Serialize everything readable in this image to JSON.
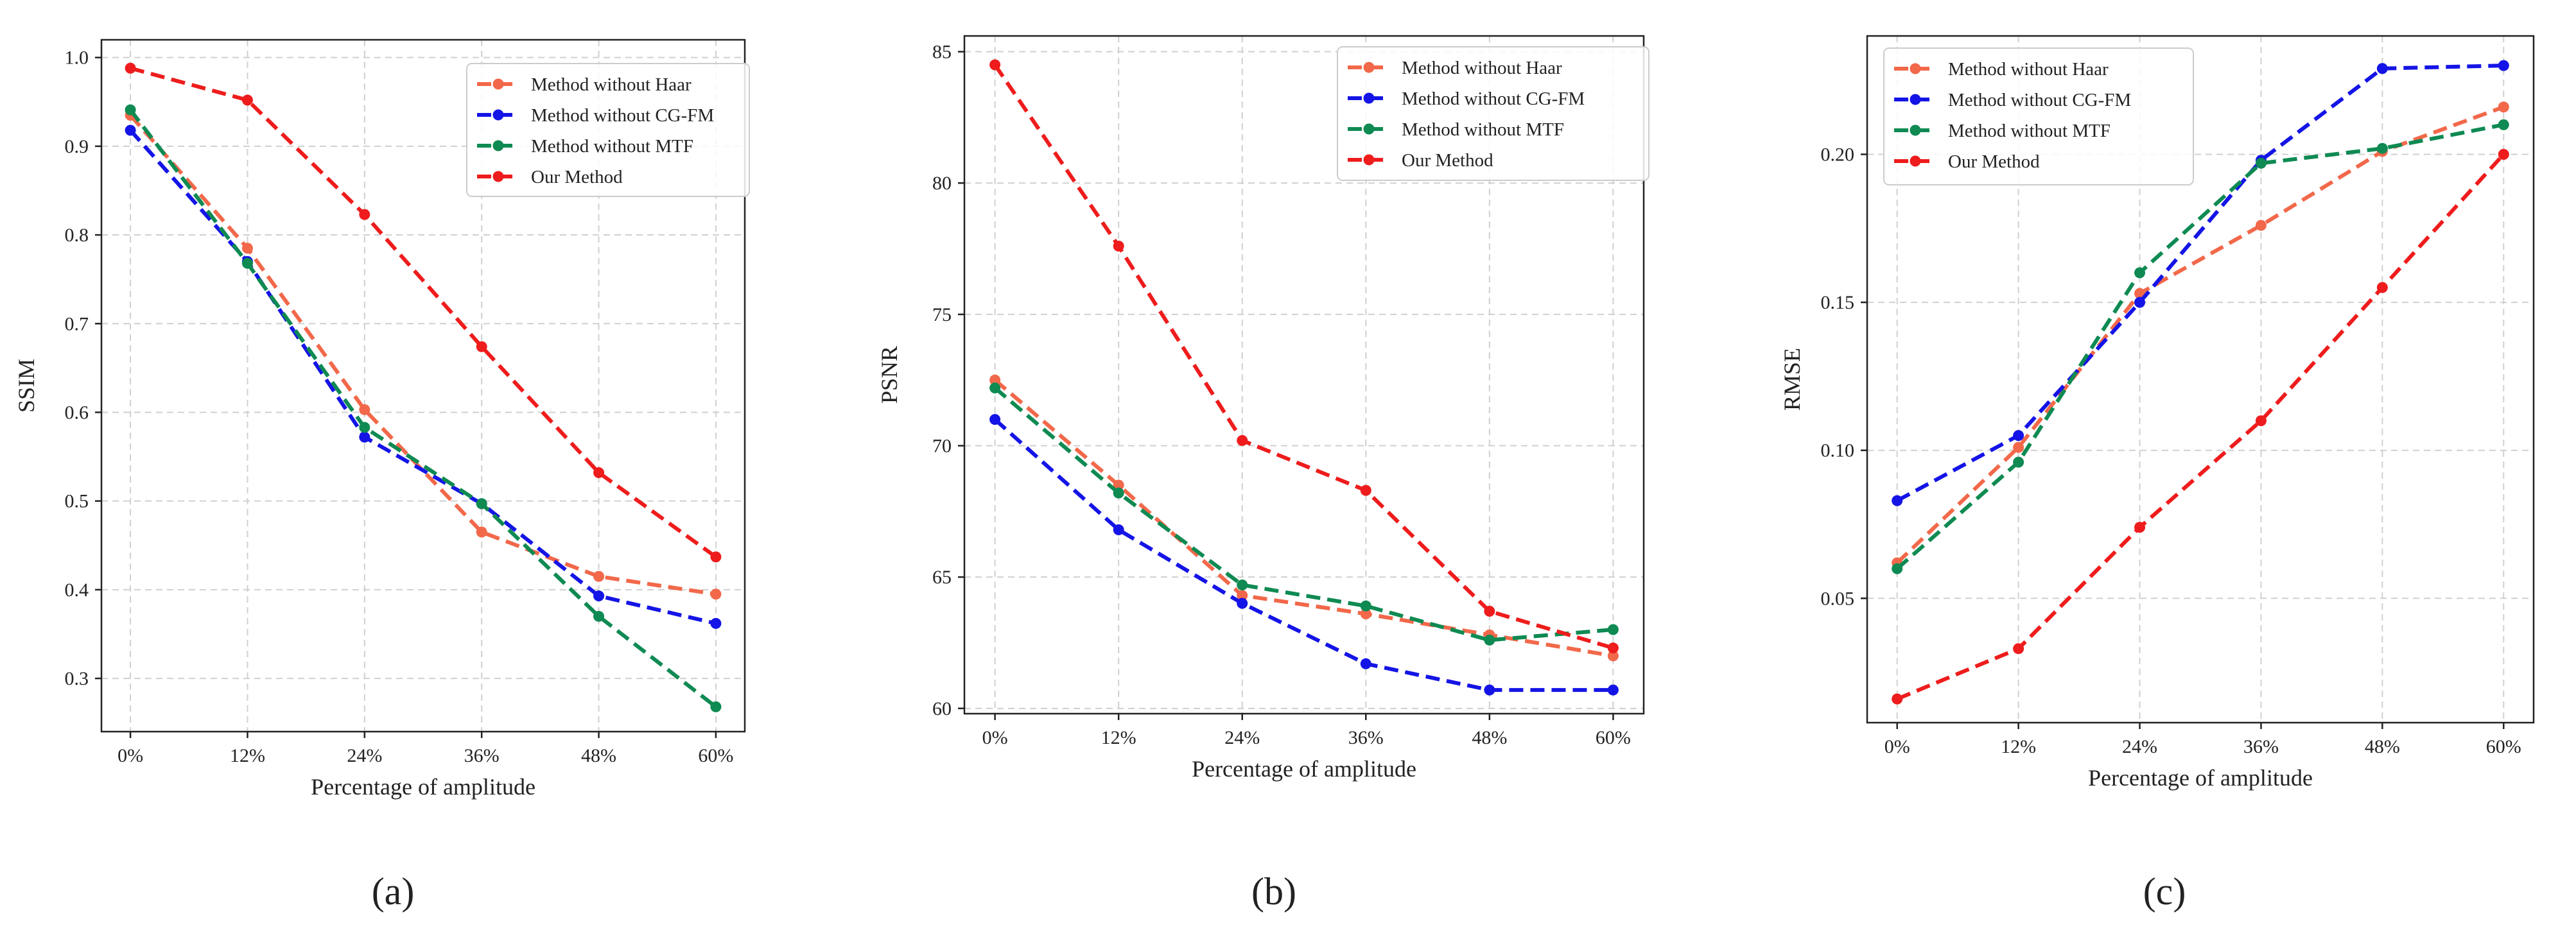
{
  "colors": {
    "haar": "#f2684a",
    "cgfm": "#1414e6",
    "mtf": "#0e8a52",
    "ours": "#ee1c1c",
    "grid": "#d0d0d0",
    "axis": "#222222"
  },
  "chart_data": [
    {
      "type": "line",
      "panel_label": "(a)",
      "panel_letter": "a",
      "xlabel": "Percentage of amplitude",
      "ylabel": "SSIM",
      "categories": [
        "0%",
        "12%",
        "24%",
        "36%",
        "48%",
        "60%"
      ],
      "ylim": [
        0.24,
        1.02
      ],
      "yticks": [
        0.3,
        0.4,
        0.5,
        0.6,
        0.7,
        0.8,
        0.9,
        1.0
      ],
      "ytick_labels": [
        "0.3",
        "0.4",
        "0.5",
        "0.6",
        "0.7",
        "0.8",
        "0.9",
        "1.0"
      ],
      "grid": true,
      "legend_position": "top-right",
      "series": [
        {
          "name": "Method without Haar",
          "color_key": "haar",
          "values": [
            0.935,
            0.785,
            0.603,
            0.465,
            0.415,
            0.395
          ]
        },
        {
          "name": "Method without CG-FM",
          "color_key": "cgfm",
          "values": [
            0.918,
            0.77,
            0.572,
            0.497,
            0.393,
            0.362
          ]
        },
        {
          "name": "Method without MTF",
          "color_key": "mtf",
          "values": [
            0.941,
            0.768,
            0.583,
            0.497,
            0.37,
            0.268
          ]
        },
        {
          "name": "Our Method",
          "color_key": "ours",
          "values": [
            0.988,
            0.952,
            0.823,
            0.674,
            0.532,
            0.437
          ]
        }
      ]
    },
    {
      "type": "line",
      "panel_label": "(b)",
      "panel_letter": "b",
      "xlabel": "Percentage of amplitude",
      "ylabel": "PSNR",
      "categories": [
        "0%",
        "12%",
        "24%",
        "36%",
        "48%",
        "60%"
      ],
      "ylim": [
        59.8,
        85.6
      ],
      "yticks": [
        60,
        65,
        70,
        75,
        80,
        85
      ],
      "ytick_labels": [
        "60",
        "65",
        "70",
        "75",
        "80",
        "85"
      ],
      "grid": true,
      "legend_position": "top-right",
      "series": [
        {
          "name": "Method without Haar",
          "color_key": "haar",
          "values": [
            72.5,
            68.5,
            64.3,
            63.6,
            62.8,
            62.0
          ]
        },
        {
          "name": "Method without CG-FM",
          "color_key": "cgfm",
          "values": [
            71.0,
            66.8,
            64.0,
            61.7,
            60.7,
            60.7
          ]
        },
        {
          "name": "Method without MTF",
          "color_key": "mtf",
          "values": [
            72.2,
            68.2,
            64.7,
            63.9,
            62.6,
            63.0
          ]
        },
        {
          "name": "Our Method",
          "color_key": "ours",
          "values": [
            84.5,
            77.6,
            70.2,
            68.3,
            63.7,
            62.3
          ]
        }
      ]
    },
    {
      "type": "line",
      "panel_label": "(c)",
      "panel_letter": "c",
      "xlabel": "Percentage of amplitude",
      "ylabel": "RMSE",
      "categories": [
        "0%",
        "12%",
        "24%",
        "36%",
        "48%",
        "60%"
      ],
      "ylim": [
        0.008,
        0.24
      ],
      "yticks": [
        0.05,
        0.1,
        0.15,
        0.2
      ],
      "ytick_labels": [
        "0.05",
        "0.10",
        "0.15",
        "0.20"
      ],
      "grid": true,
      "legend_position": "top-left",
      "series": [
        {
          "name": "Method without Haar",
          "color_key": "haar",
          "values": [
            0.062,
            0.101,
            0.153,
            0.176,
            0.201,
            0.216
          ]
        },
        {
          "name": "Method without CG-FM",
          "color_key": "cgfm",
          "values": [
            0.083,
            0.105,
            0.15,
            0.198,
            0.229,
            0.23
          ]
        },
        {
          "name": "Method without MTF",
          "color_key": "mtf",
          "values": [
            0.06,
            0.096,
            0.16,
            0.197,
            0.202,
            0.21
          ]
        },
        {
          "name": "Our Method",
          "color_key": "ours",
          "values": [
            0.016,
            0.033,
            0.074,
            0.11,
            0.155,
            0.2
          ]
        }
      ]
    }
  ]
}
